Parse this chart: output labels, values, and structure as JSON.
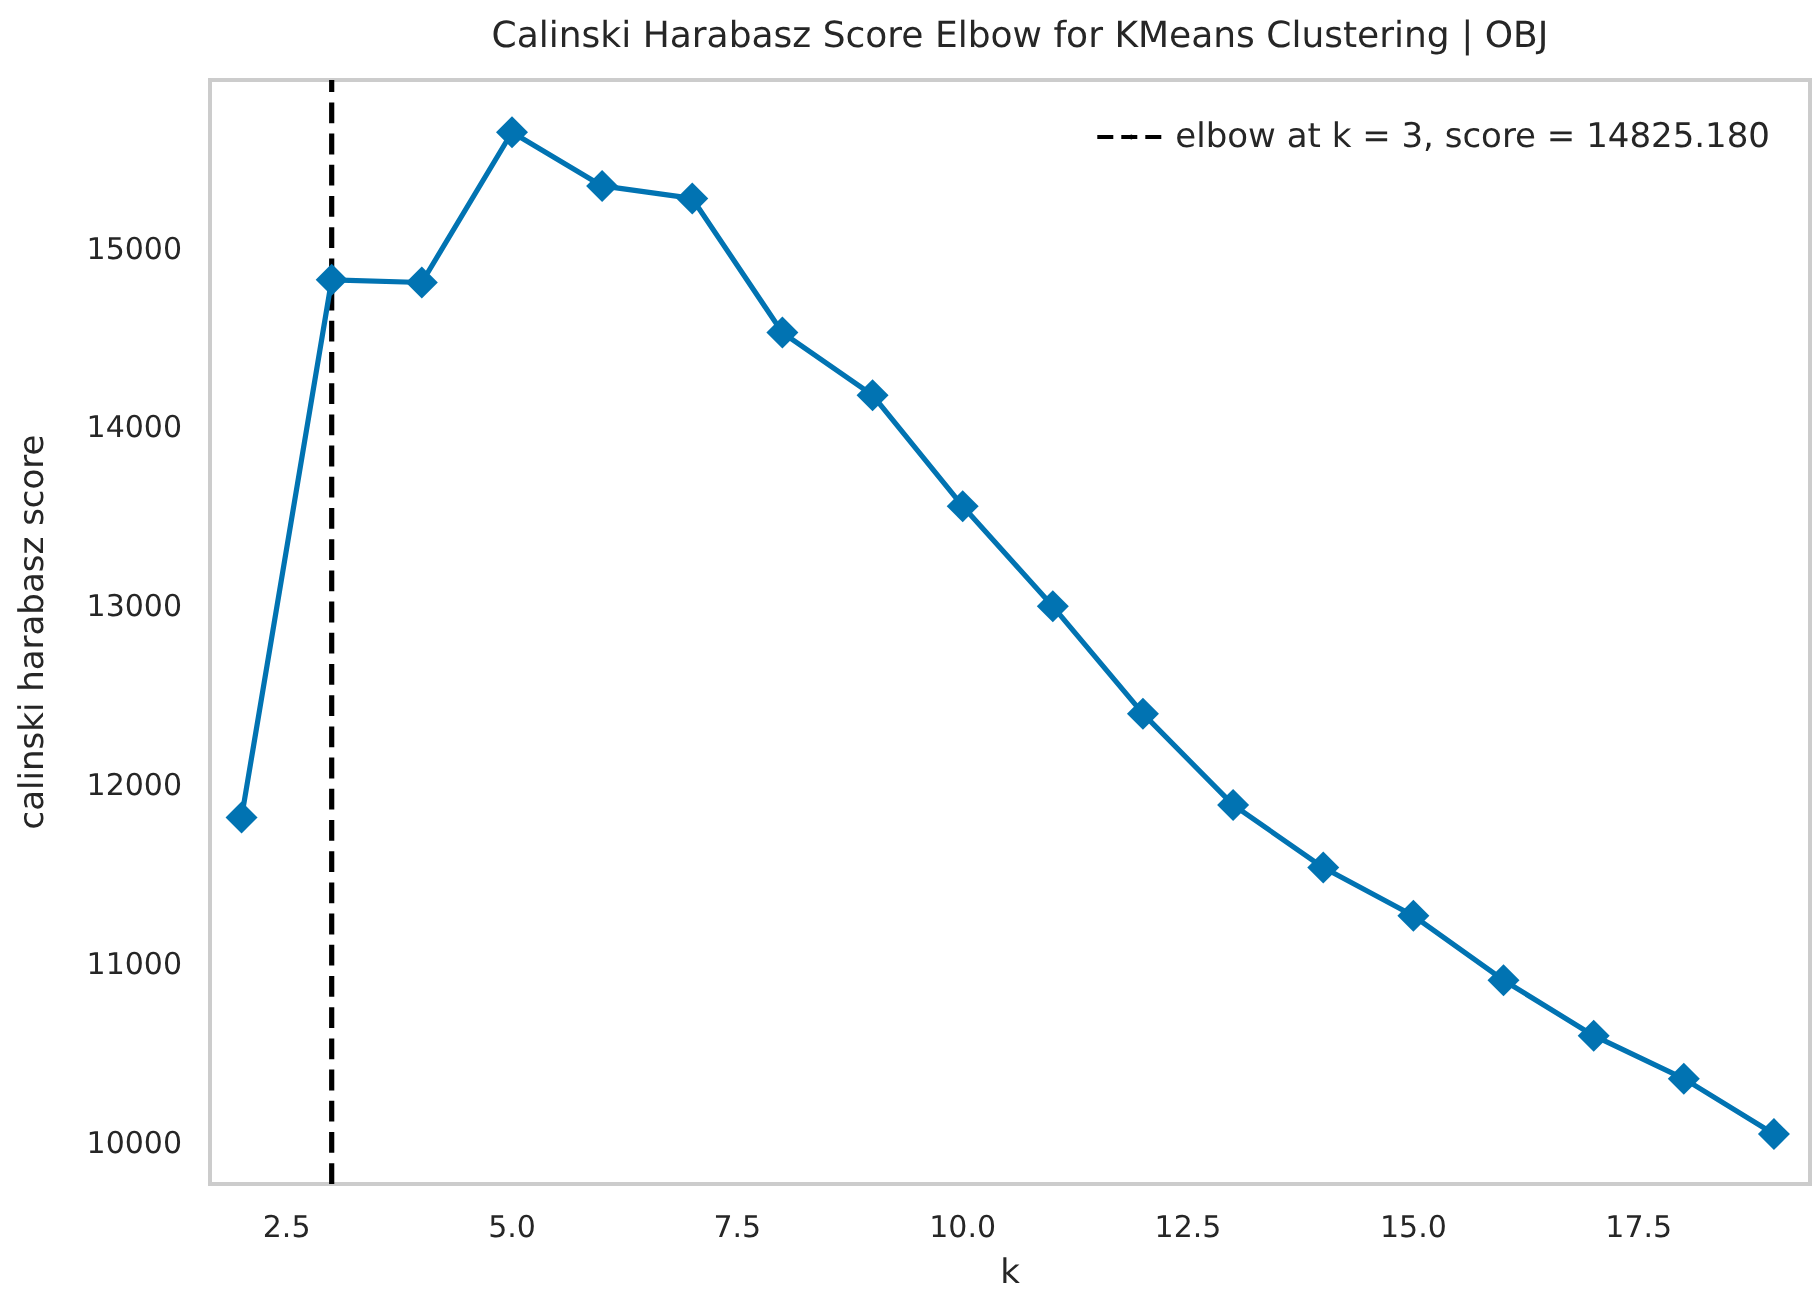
{
  "chart_data": {
    "type": "line",
    "title": "Calinski Harabasz Score Elbow for KMeans Clustering | OBJ",
    "xlabel": "k",
    "ylabel": "calinski harabasz score",
    "x": [
      2,
      3,
      4,
      5,
      6,
      7,
      8,
      9,
      10,
      11,
      12,
      13,
      14,
      15,
      16,
      17,
      18,
      19
    ],
    "series": [
      {
        "color": "#0173b2",
        "values": [
          11820,
          14825.18,
          14810,
          15650,
          15350,
          15280,
          14530,
          14180,
          13560,
          13000,
          12400,
          11890,
          11540,
          11270,
          10910,
          10600,
          10360,
          10050
        ]
      }
    ],
    "xlim": [
      1.65,
      19.4
    ],
    "xticks": [
      {
        "value": 2.5,
        "label": "2.5"
      },
      {
        "value": 5,
        "label": "5.0"
      },
      {
        "value": 7.5,
        "label": "7.5"
      },
      {
        "value": 10,
        "label": "10.0"
      },
      {
        "value": 12.5,
        "label": "12.5"
      },
      {
        "value": 15,
        "label": "15.0"
      },
      {
        "value": 17.5,
        "label": "17.5"
      }
    ],
    "ylim": [
      9771,
      15942
    ],
    "yticks": [
      10000,
      11000,
      12000,
      13000,
      14000,
      15000
    ],
    "ref_lines": [
      {
        "axis": "x",
        "value": 3,
        "label": "elbow at k = 3, score = 14825.180",
        "color": "#000000",
        "line_style": "dashed"
      }
    ],
    "legend": "top right",
    "grid": false,
    "marker": "diamond",
    "line_style": "solid"
  }
}
